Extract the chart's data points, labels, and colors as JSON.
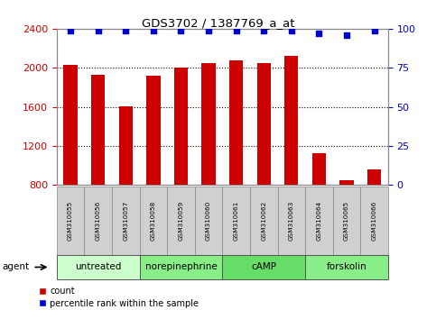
{
  "title": "GDS3702 / 1387769_a_at",
  "samples": [
    "GSM310055",
    "GSM310056",
    "GSM310057",
    "GSM310058",
    "GSM310059",
    "GSM310060",
    "GSM310061",
    "GSM310062",
    "GSM310063",
    "GSM310064",
    "GSM310065",
    "GSM310066"
  ],
  "counts": [
    2030,
    1930,
    1610,
    1920,
    2000,
    2050,
    2080,
    2050,
    2120,
    1130,
    850,
    960
  ],
  "percentiles": [
    99,
    99,
    99,
    99,
    99,
    99,
    99,
    99,
    99,
    97,
    96,
    99
  ],
  "bar_color": "#cc0000",
  "dot_color": "#0000cc",
  "ylim_left": [
    800,
    2400
  ],
  "ylim_right": [
    0,
    100
  ],
  "yticks_left": [
    800,
    1200,
    1600,
    2000,
    2400
  ],
  "yticks_right": [
    0,
    25,
    50,
    75,
    100
  ],
  "groups": [
    {
      "label": "untreated",
      "start": 0,
      "end": 3,
      "color": "#ccffcc"
    },
    {
      "label": "norepinephrine",
      "start": 3,
      "end": 6,
      "color": "#88ee88"
    },
    {
      "label": "cAMP",
      "start": 6,
      "end": 9,
      "color": "#66dd66"
    },
    {
      "label": "forskolin",
      "start": 9,
      "end": 12,
      "color": "#88ee88"
    }
  ],
  "agent_label": "agent",
  "legend_count_label": "count",
  "legend_pct_label": "percentile rank within the sample",
  "plot_bg": "#ffffff",
  "grid_color": "#000000",
  "tick_label_color_left": "#cc0000",
  "tick_label_color_right": "#0000cc"
}
